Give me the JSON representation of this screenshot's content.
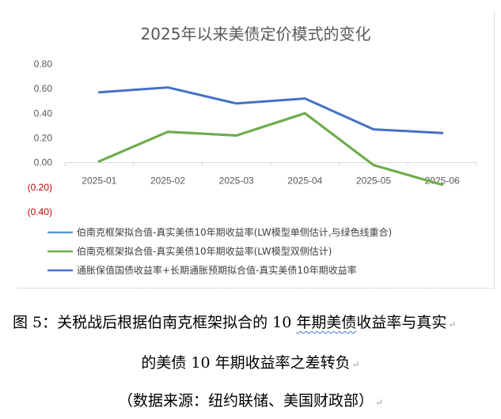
{
  "chart_data": {
    "type": "line",
    "title": "2025年以来美债定价模式的变化",
    "categories": [
      "2025-01",
      "2025-02",
      "2025-03",
      "2025-04",
      "2025-05",
      "2025-06"
    ],
    "ylim": [
      -0.4,
      0.8
    ],
    "yticks": [
      "0.80",
      "0.60",
      "0.40",
      "0.20",
      "0.00",
      "(0.20)",
      "(0.40)"
    ],
    "ytick_values": [
      0.8,
      0.6,
      0.4,
      0.2,
      0.0,
      -0.2,
      -0.4
    ],
    "negative_tick_color": "#c00000",
    "grid": false,
    "legend_position": "bottom",
    "series": [
      {
        "name": "伯南克框架拟合值-真实美债10年期收益率(LW模型单侧估计,与绿色线重合)",
        "color": "#5b9bd5",
        "values": [
          0.01,
          0.25,
          0.22,
          0.4,
          -0.02,
          -0.18
        ],
        "hidden_by_overlap": true
      },
      {
        "name": "伯南克框架拟合值-真实美债10年期收益率(LW模型双侧估计)",
        "color": "#70ad47",
        "values": [
          0.01,
          0.25,
          0.22,
          0.4,
          -0.02,
          -0.18
        ]
      },
      {
        "name": "通胀保值国债收益率+长期通胀预期拟合值-真实美债10年期收益率",
        "color": "#4472c4",
        "values": [
          0.57,
          0.61,
          0.48,
          0.52,
          0.27,
          0.24
        ]
      }
    ]
  },
  "caption": {
    "line1_before": "图 5：关税战后根据伯南克框架拟合的 10 ",
    "line1_wavy": "年期美债",
    "line1_after": "收益率与真实",
    "line2": "的美债 10 年期收益率之差转负",
    "source": "（数据来源：纽约联储、美国财政部）",
    "paragraph_mark": "↵"
  }
}
